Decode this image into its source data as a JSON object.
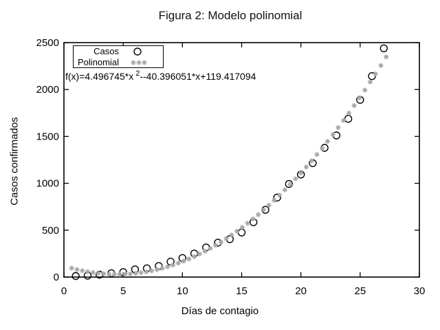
{
  "title": "Figura 2: Modelo polinomial",
  "equation": {
    "before": "f(x)=4.496745*x",
    "sup": "2",
    "after": "--40.396051*x+119.417094"
  },
  "legend": {
    "items": [
      {
        "label": "Casos",
        "symbol": "open-circle"
      },
      {
        "label": "Polinomial",
        "symbol": "gray-asterisks"
      }
    ]
  },
  "colors": {
    "data_points": "#000000",
    "fit_points": "#a8a8a8",
    "axis": "#000000",
    "background": "#ffffff"
  },
  "chart_data": {
    "type": "scatter",
    "title": "Figura 2: Modelo polinomial",
    "xlabel": "Días de contagio",
    "ylabel": "Casos confirmados",
    "xlim": [
      0,
      30
    ],
    "ylim": [
      0,
      2500
    ],
    "xticks": [
      0,
      5,
      10,
      15,
      20,
      25,
      30
    ],
    "yticks": [
      0,
      500,
      1000,
      1500,
      2000,
      2500
    ],
    "grid": false,
    "legend_position": "top-left-inside",
    "series": [
      {
        "name": "Casos",
        "type": "scatter",
        "marker": "open-circle",
        "color": "#000000",
        "x": [
          1,
          2,
          3,
          4,
          5,
          6,
          7,
          8,
          9,
          10,
          11,
          12,
          13,
          14,
          15,
          16,
          17,
          18,
          19,
          20,
          21,
          22,
          23,
          24,
          25,
          26,
          27
        ],
        "y": [
          11,
          15,
          26,
          41,
          53,
          82,
          93,
          118,
          164,
          203,
          251,
          316,
          367,
          405,
          475,
          585,
          717,
          848,
          993,
          1094,
          1215,
          1378,
          1510,
          1688,
          1890,
          2143,
          2439
        ]
      },
      {
        "name": "Polinomial",
        "type": "function-points",
        "marker": "asterisk",
        "color": "#a8a8a8",
        "coefficients": {
          "a": 4.496745,
          "b": -40.396051,
          "c": 119.417094
        },
        "x_start": 0.65,
        "x_step": 0.45,
        "x_end": 27.2
      }
    ]
  }
}
